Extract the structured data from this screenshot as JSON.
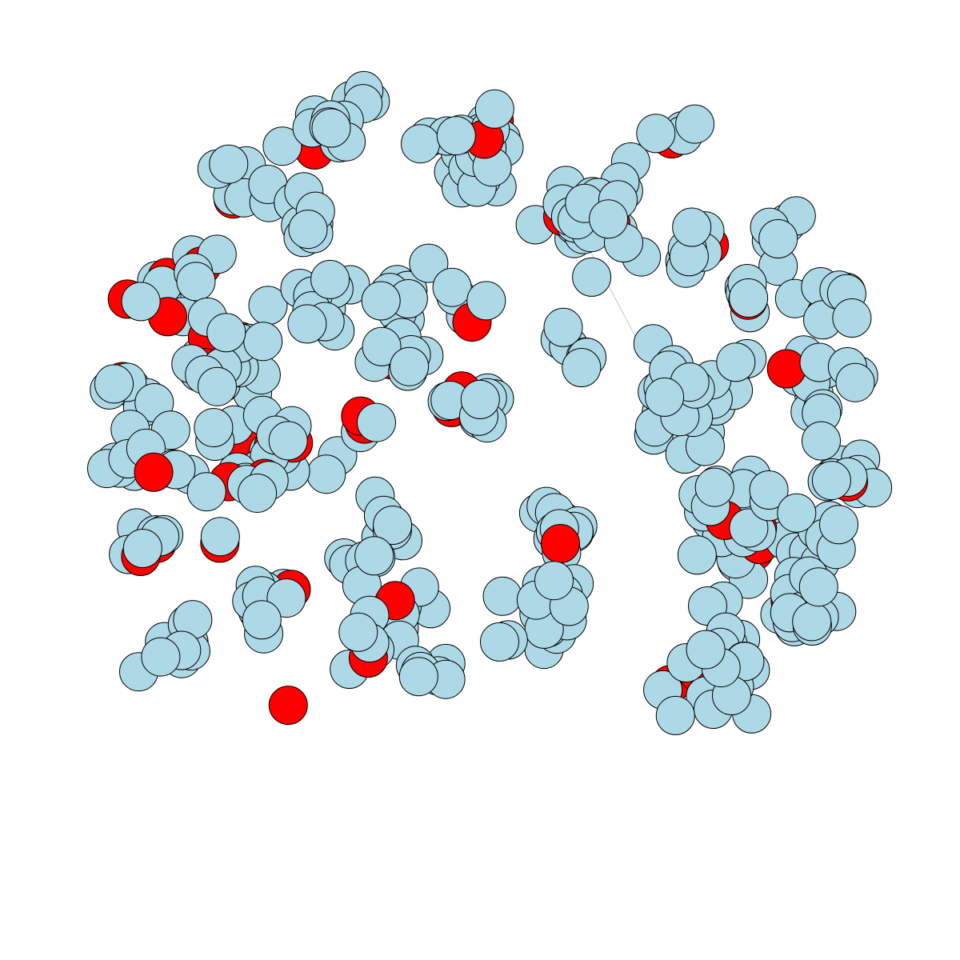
{
  "graph": {
    "node_count": 500,
    "highlighted_count": 56,
    "edge_count": 2
  },
  "colors": {
    "background": "#ffffff",
    "node_default": "#add8e6",
    "node_highlight": "#ff0000",
    "node_border": "#000000",
    "edge": "#c8c8c8"
  }
}
